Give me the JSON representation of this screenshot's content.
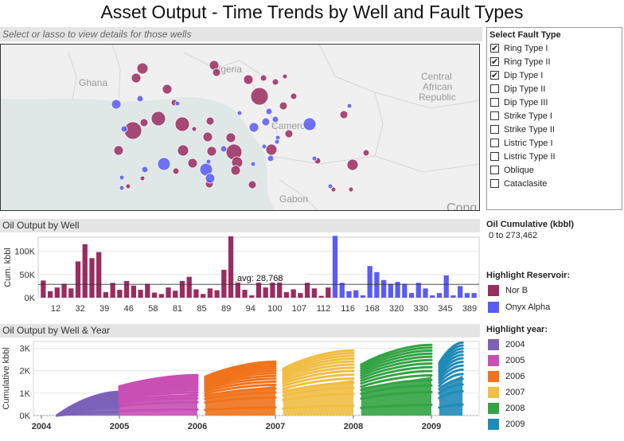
{
  "title": "Asset Output - Time Trends by Well and Fault Types",
  "map": {
    "hint": "Select or lasso to view details for those wells",
    "labels": [
      "Nigeria",
      "Ghana",
      "Central",
      "African",
      "Republic",
      "Cameroon",
      "Gabon",
      "Cong"
    ]
  },
  "fault_filter": {
    "title": "Select Fault Type",
    "items": [
      {
        "label": "Ring Type I",
        "checked": true
      },
      {
        "label": "Ring Type II",
        "checked": true
      },
      {
        "label": "Dip Type I",
        "checked": true
      },
      {
        "label": "Dip Type II",
        "checked": false
      },
      {
        "label": "Dip Type III",
        "checked": false
      },
      {
        "label": "Strike Type I",
        "checked": false
      },
      {
        "label": "Strike Type II",
        "checked": false
      },
      {
        "label": "Listric Type I",
        "checked": false
      },
      {
        "label": "Listric Type II",
        "checked": false
      },
      {
        "label": "Oblique",
        "checked": false
      },
      {
        "label": "Cataclasite",
        "checked": false
      }
    ]
  },
  "oil_cumulative": {
    "title": "Oil Cumulative (kbbl)",
    "range": "0 to 273,462"
  },
  "reservoir_legend": {
    "title": "Highlight Reservoir:",
    "items": [
      {
        "label": "Nor B",
        "color": "#9b2c5e"
      },
      {
        "label": "Onyx Alpha",
        "color": "#5b5bf5"
      }
    ]
  },
  "year_legend": {
    "title": "Highlight year:",
    "items": [
      {
        "label": "2004",
        "color": "#7b62b8"
      },
      {
        "label": "2005",
        "color": "#c84fb4"
      },
      {
        "label": "2006",
        "color": "#f0731c"
      },
      {
        "label": "2007",
        "color": "#f0be44"
      },
      {
        "label": "2008",
        "color": "#33a344"
      },
      {
        "label": "2009",
        "color": "#1f8bb8"
      }
    ]
  },
  "bar_section_title": "Oil Output by Well",
  "line_section_title": "Oil Output by Well & Year",
  "chart_data": [
    {
      "type": "bar",
      "ylabel": "Cum. kbbl",
      "yticks": [
        {
          "v": 0,
          "label": "0K"
        },
        {
          "v": 50,
          "label": "50K"
        },
        {
          "v": 100,
          "label": "100K"
        }
      ],
      "ylim": [
        0,
        130
      ],
      "xtick_labels": [
        "12",
        "32",
        "39",
        "46",
        "58",
        "81",
        "85",
        "89",
        "94",
        "100",
        "107",
        "112",
        "116",
        "168",
        "320",
        "330",
        "345",
        "389"
      ],
      "reference_line": {
        "value": 28.768,
        "label": "avg: 28,768"
      },
      "series": [
        {
          "name": "Nor B",
          "values": [
            37,
            14,
            22,
            30,
            20,
            78,
            115,
            85,
            98,
            12,
            32,
            17,
            36,
            26,
            17,
            30,
            11,
            8,
            22,
            15,
            36,
            45,
            18,
            8,
            20,
            16,
            60,
            132,
            36,
            17,
            5,
            34,
            22,
            35,
            45,
            12,
            18,
            10,
            32,
            20,
            4,
            22
          ]
        },
        {
          "name": "Onyx Alpha",
          "values": [
            133,
            32,
            14,
            16,
            5,
            68,
            55,
            38,
            30,
            34,
            30,
            10,
            32,
            20,
            5,
            10,
            48,
            5,
            25,
            10,
            10
          ]
        }
      ]
    },
    {
      "type": "line",
      "ylabel": "Cumulative kbbl",
      "yticks": [
        {
          "v": 0,
          "label": "0K"
        },
        {
          "v": 1000,
          "label": "1K"
        },
        {
          "v": 2000,
          "label": "2K"
        },
        {
          "v": 3000,
          "label": "3K"
        }
      ],
      "xtick_labels": [
        "2004",
        "2005",
        "2006",
        "2007",
        "2008",
        "2009"
      ],
      "ylim": [
        0,
        3300
      ],
      "series": [
        {
          "name": "2004",
          "start_year": 2004.2,
          "end_year": 2005.0,
          "max_value": 1050
        },
        {
          "name": "2005",
          "start_year": 2005.0,
          "end_year": 2006.0,
          "max_value": 1800
        },
        {
          "name": "2006",
          "start_year": 2006.1,
          "end_year": 2007.0,
          "max_value": 2400
        },
        {
          "name": "2007",
          "start_year": 2007.1,
          "end_year": 2008.0,
          "max_value": 2900
        },
        {
          "name": "2008",
          "start_year": 2008.1,
          "end_year": 2009.0,
          "max_value": 3150
        },
        {
          "name": "2009",
          "start_year": 2009.1,
          "end_year": 2009.4,
          "max_value": 3250
        }
      ]
    }
  ]
}
